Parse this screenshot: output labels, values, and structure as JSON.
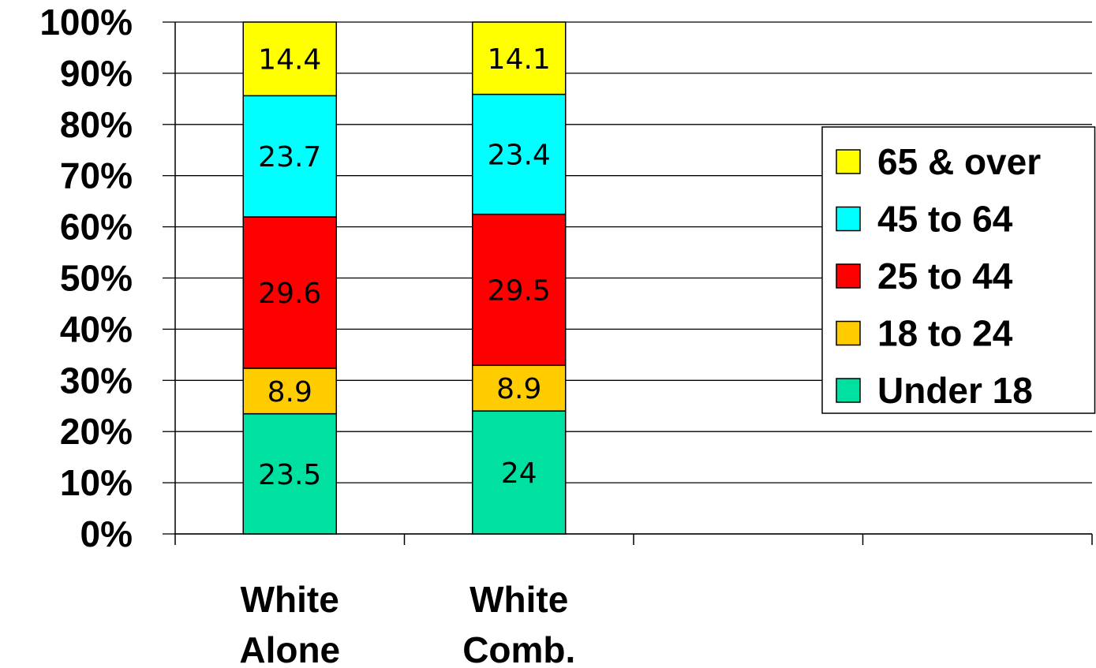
{
  "chart_data": {
    "type": "bar",
    "stacked": true,
    "normalized": true,
    "categories": [
      [
        "White",
        "Alone"
      ],
      [
        "White",
        "Comb."
      ]
    ],
    "series": [
      {
        "name": "Under 18",
        "color": "#00e0a0",
        "values": [
          23.5,
          24
        ]
      },
      {
        "name": "18 to 24",
        "color": "#ffcc00",
        "values": [
          8.9,
          8.9
        ]
      },
      {
        "name": "25 to 44",
        "color": "#ff0000",
        "values": [
          29.6,
          29.5
        ]
      },
      {
        "name": "45 to 64",
        "color": "#00ffff",
        "values": [
          23.7,
          23.4
        ]
      },
      {
        "name": "65 & over",
        "color": "#ffff00",
        "values": [
          14.4,
          14.1
        ]
      }
    ],
    "y_ticks": [
      "0%",
      "10%",
      "20%",
      "30%",
      "40%",
      "50%",
      "60%",
      "70%",
      "80%",
      "90%",
      "100%"
    ],
    "ylim": [
      0,
      100
    ],
    "category_slots": 4,
    "grid": true,
    "legend_position": "right"
  }
}
